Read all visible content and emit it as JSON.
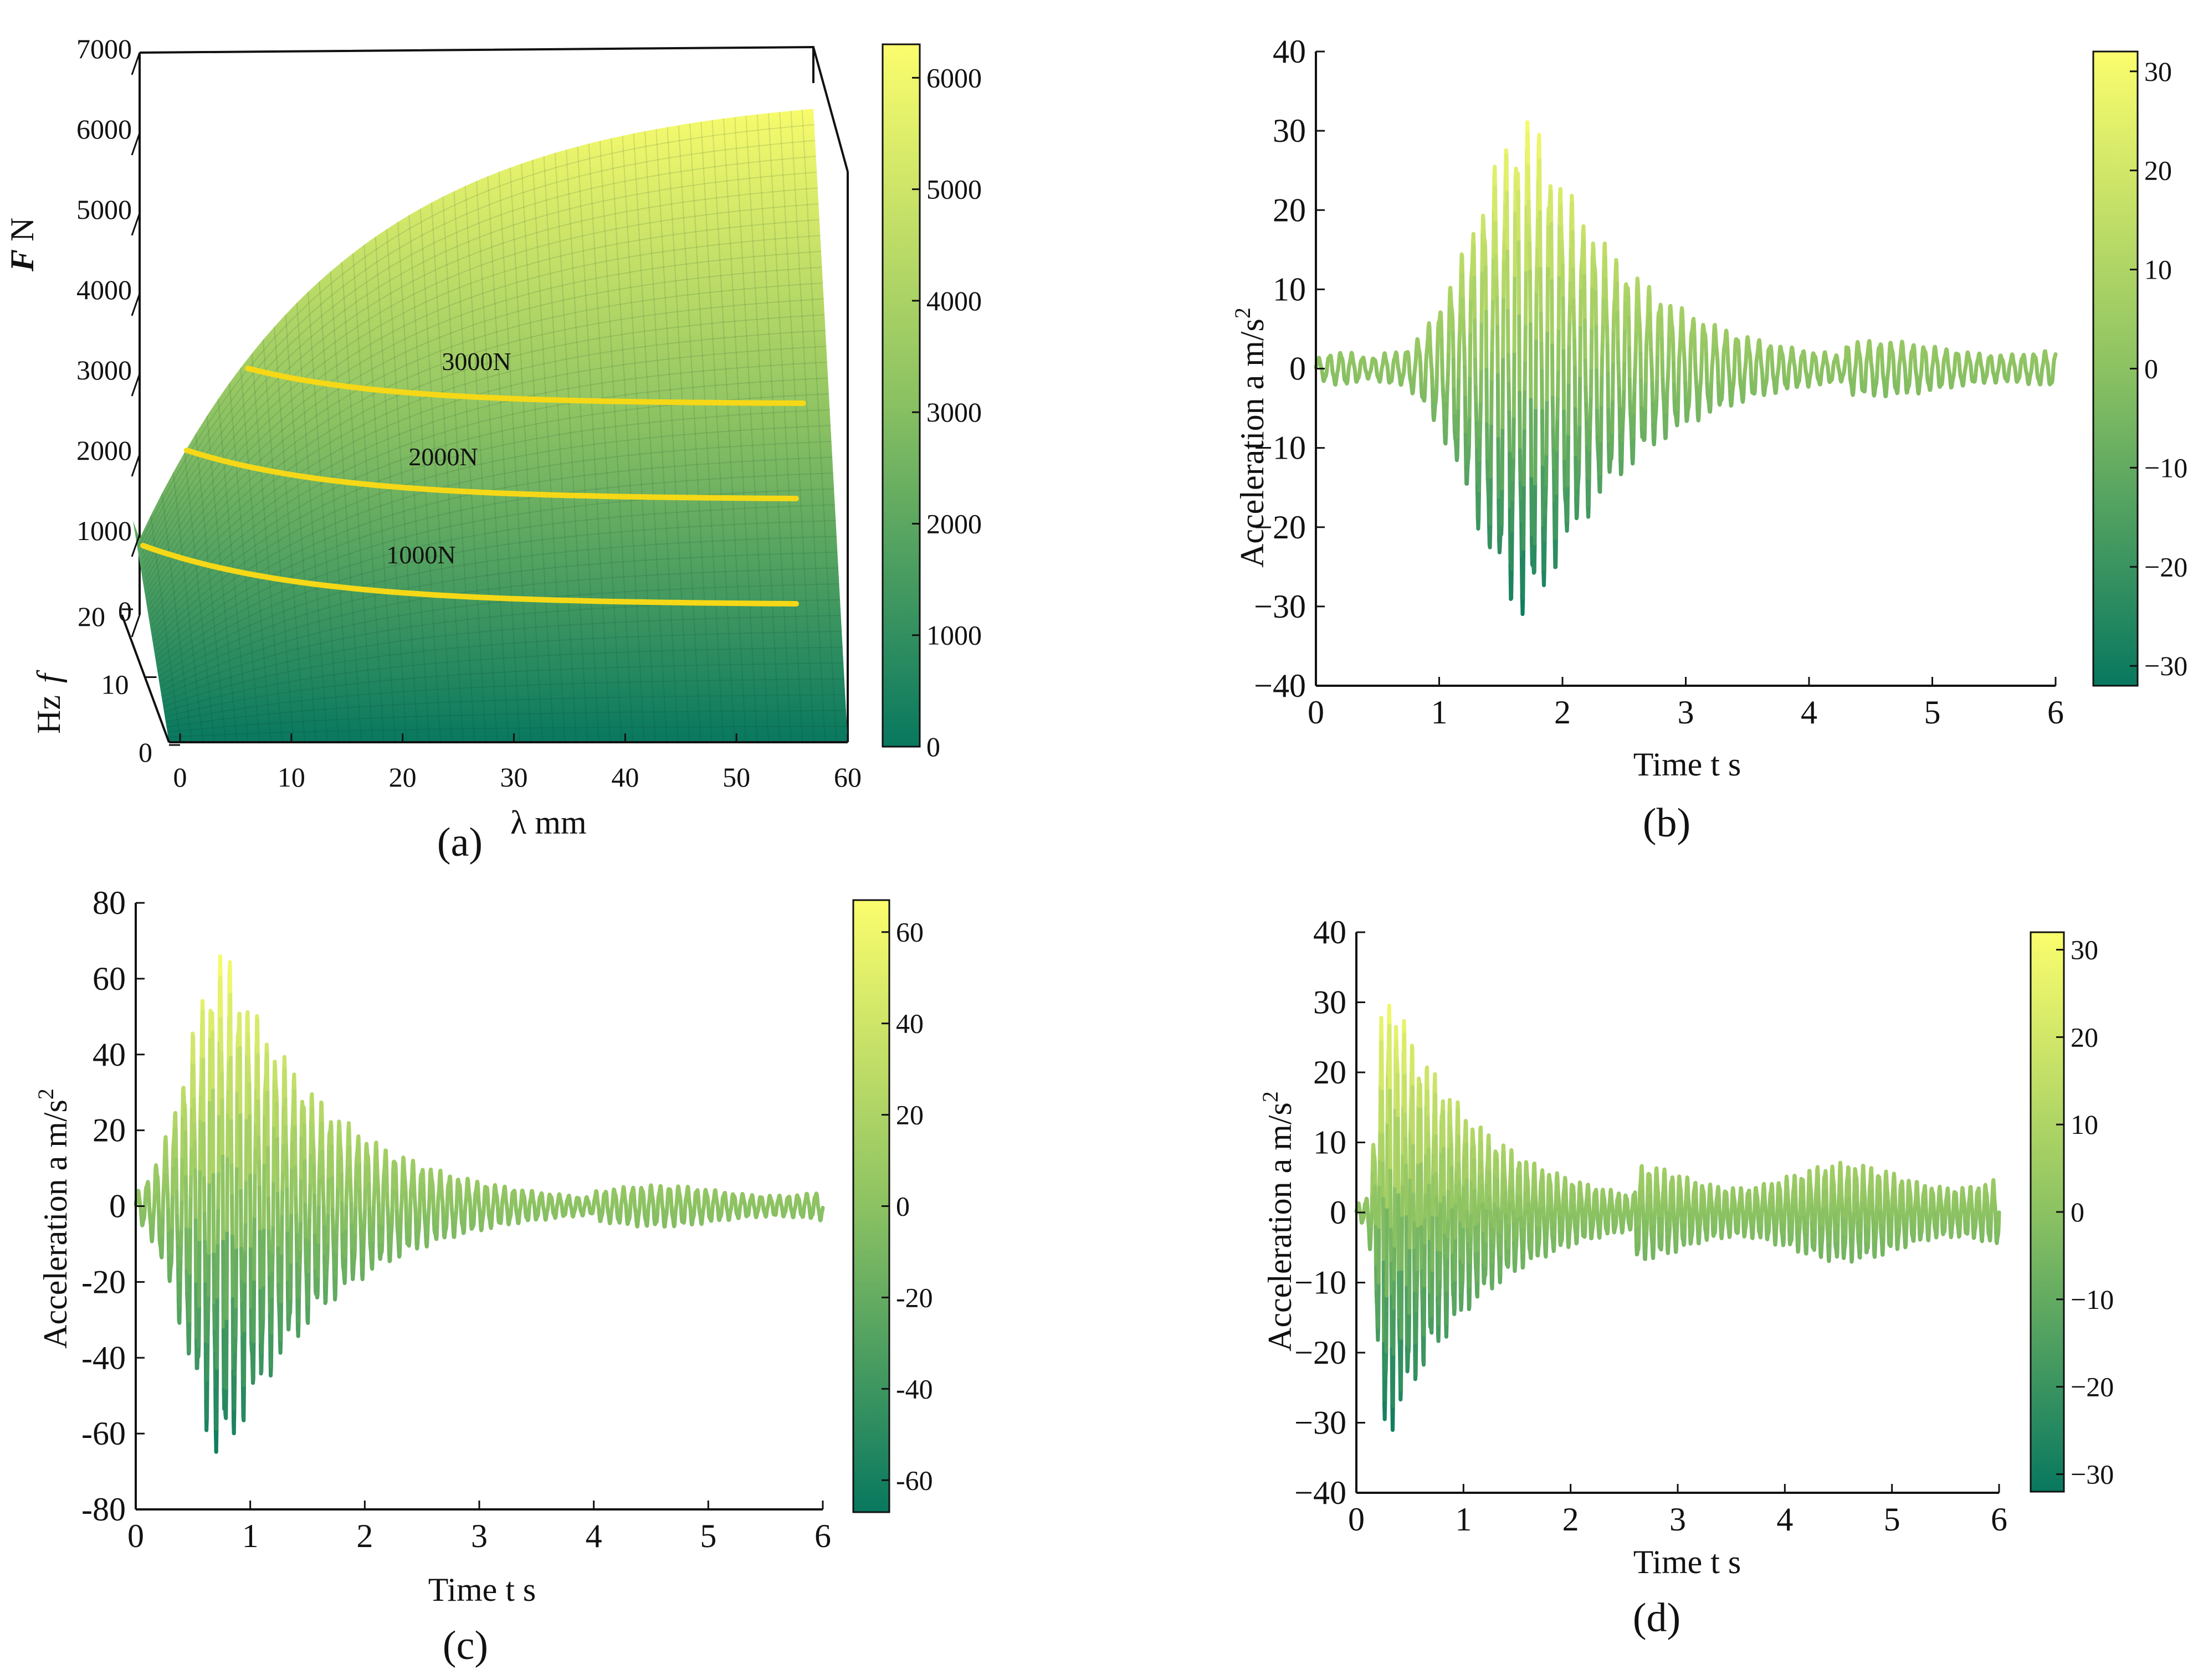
{
  "colors": {
    "low": "#08785F",
    "mid": "#8CC262",
    "high": "#FBFD6D",
    "contour": "#F6D817",
    "axis": "#111111"
  },
  "chart_data": [
    {
      "id": "a",
      "panel_label": "(a)",
      "type": "surface",
      "title": "",
      "xlabel": "λ mm",
      "ylabel": "Hz",
      "ylabel_glyph": "f",
      "zlabel": "N",
      "zlabel_glyph": "F",
      "xlim": [
        0,
        60
      ],
      "ylim": [
        0,
        20
      ],
      "zlim": [
        0,
        7000
      ],
      "x_ticks": [
        "0",
        "10",
        "20",
        "30",
        "40",
        "50",
        "60"
      ],
      "y_ticks": [
        "0",
        "10",
        "20"
      ],
      "z_ticks": [
        "0",
        "1000",
        "2000",
        "3000",
        "4000",
        "5000",
        "6000",
        "7000"
      ],
      "surface_max": 6300,
      "contour_levels": [
        {
          "value": 1000,
          "label": "1000N"
        },
        {
          "value": 2000,
          "label": "2000N"
        },
        {
          "value": 3000,
          "label": "3000N"
        }
      ],
      "colorbar": {
        "min": 0,
        "max": 6300,
        "ticks": [
          "0",
          "1000",
          "2000",
          "3000",
          "4000",
          "5000",
          "6000"
        ],
        "tick_values": [
          0,
          1000,
          2000,
          3000,
          4000,
          5000,
          6000
        ]
      }
    },
    {
      "id": "b",
      "panel_label": "(b)",
      "type": "line",
      "title": "",
      "xlabel": "Time t  s",
      "ylabel": "Acceleration a  m/s",
      "ylabel_sup": "2",
      "xlim": [
        0,
        6
      ],
      "ylim": [
        -40,
        40
      ],
      "x_ticks": [
        "0",
        "1",
        "2",
        "3",
        "4",
        "5",
        "6"
      ],
      "x_tick_values": [
        0,
        1,
        2,
        3,
        4,
        5,
        6
      ],
      "y_ticks": [
        "40",
        "30",
        "20",
        "10",
        "0",
        "−10",
        "−20",
        "−30",
        "−40"
      ],
      "y_tick_values": [
        40,
        30,
        20,
        10,
        0,
        -10,
        -20,
        -30,
        -40
      ],
      "signal": {
        "peak_time": 1.75,
        "peak_amplitude": 31.5,
        "rise_width": 0.45,
        "decay_time": 0.85,
        "floor": 3.5,
        "floor_start": 4.3,
        "frequency": 11.2
      },
      "colorbar": {
        "min": -32,
        "max": 32,
        "ticks": [
          "30",
          "20",
          "10",
          "0",
          "−10",
          "−20",
          "−30"
        ],
        "tick_values": [
          30,
          20,
          10,
          0,
          -10,
          -20,
          -30
        ]
      }
    },
    {
      "id": "c",
      "panel_label": "(c)",
      "type": "line",
      "title": "",
      "xlabel": "Time t  s",
      "ylabel": "Acceleration a  m/s",
      "ylabel_sup": "2",
      "xlim": [
        0,
        6
      ],
      "ylim": [
        -80,
        80
      ],
      "x_ticks": [
        "0",
        "1",
        "2",
        "3",
        "4",
        "5",
        "6"
      ],
      "x_tick_values": [
        0,
        1,
        2,
        3,
        4,
        5,
        6
      ],
      "y_ticks": [
        "80",
        "60",
        "40",
        "20",
        "0",
        "-20",
        "-40",
        "-60",
        "-80"
      ],
      "y_tick_values": [
        80,
        60,
        40,
        20,
        0,
        -20,
        -40,
        -60,
        -80
      ],
      "signal": {
        "peak_time": 0.78,
        "peak_amplitude": 67,
        "rise_width": 0.32,
        "decay_time": 0.95,
        "floor": 5.5,
        "floor_start": 4.0,
        "frequency": 12.5
      },
      "colorbar": {
        "min": -67,
        "max": 67,
        "ticks": [
          "60",
          "40",
          "20",
          "0",
          "-20",
          "-40",
          "-60"
        ],
        "tick_values": [
          60,
          40,
          20,
          0,
          -20,
          -40,
          -60
        ]
      }
    },
    {
      "id": "d",
      "panel_label": "(d)",
      "type": "line",
      "title": "",
      "xlabel": "Time t  s",
      "ylabel": "Acceleration a  m/s",
      "ylabel_sup": "2",
      "xlim": [
        0,
        6
      ],
      "ylim": [
        -40,
        40
      ],
      "x_ticks": [
        "0",
        "1",
        "2",
        "3",
        "4",
        "5",
        "6"
      ],
      "x_tick_values": [
        0,
        1,
        2,
        3,
        4,
        5,
        6
      ],
      "y_ticks": [
        "40",
        "30",
        "20",
        "10",
        "0",
        "−10",
        "−20",
        "−30",
        "−40"
      ],
      "y_tick_values": [
        40,
        30,
        20,
        10,
        0,
        -10,
        -20,
        -30,
        -40
      ],
      "signal": {
        "peak_time": 0.28,
        "peak_amplitude": 32.5,
        "rise_width": 0.08,
        "decay_time": 0.9,
        "floor": 7,
        "floor_start": 2.6,
        "frequency": 14
      },
      "colorbar": {
        "min": -32,
        "max": 32,
        "ticks": [
          "30",
          "20",
          "10",
          "0",
          "−10",
          "−20",
          "−30"
        ],
        "tick_values": [
          30,
          20,
          10,
          0,
          -10,
          -20,
          -30
        ]
      }
    }
  ]
}
